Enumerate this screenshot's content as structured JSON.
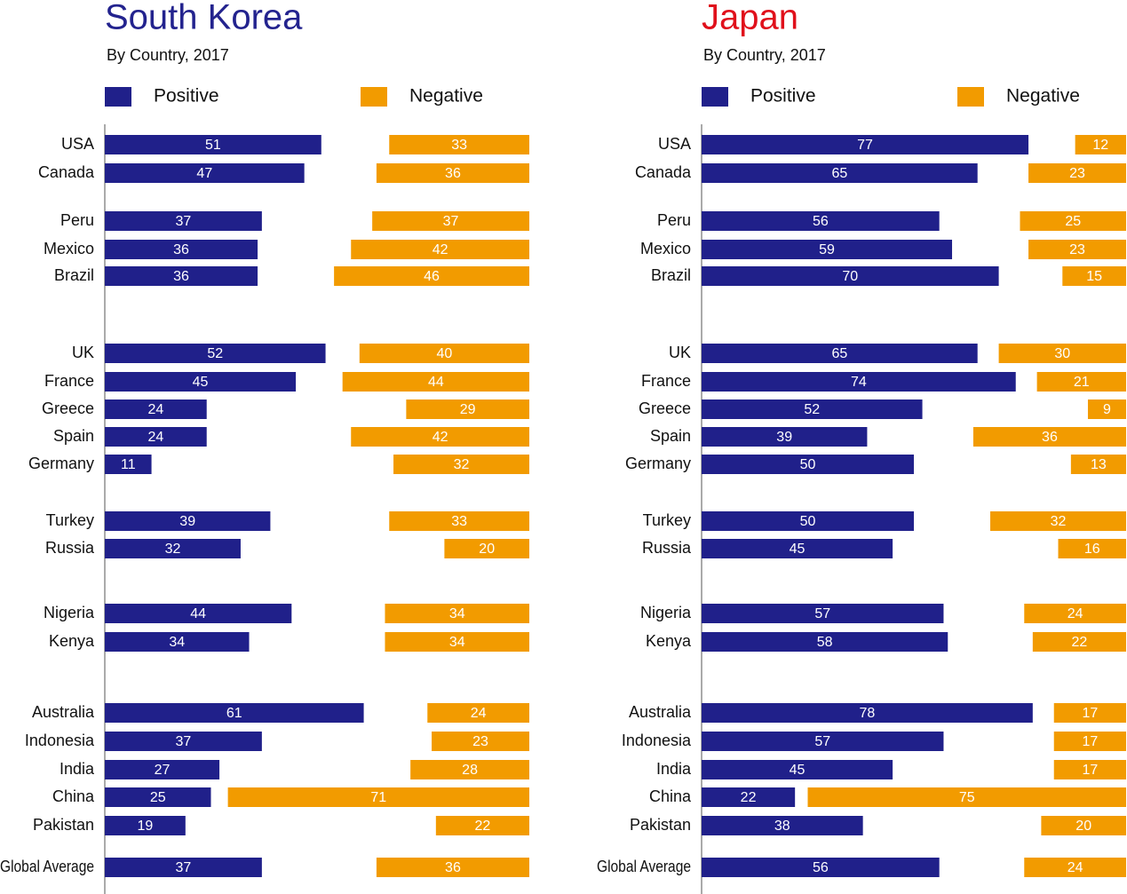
{
  "chart_data": [
    {
      "type": "diverging-bar",
      "title": "South Korea",
      "title_color": "#23238e",
      "subtitle": "By Country, 2017",
      "categories": [
        "USA",
        "Canada",
        "Peru",
        "Mexico",
        "Brazil",
        "UK",
        "France",
        "Greece",
        "Spain",
        "Germany",
        "Turkey",
        "Russia",
        "Nigeria",
        "Kenya",
        "Australia",
        "Indonesia",
        "India",
        "China",
        "Pakistan",
        "Global Average"
      ],
      "series": [
        {
          "name": "Positive",
          "color": "#20208a",
          "values": [
            51,
            47,
            37,
            36,
            36,
            52,
            45,
            24,
            24,
            11,
            39,
            32,
            44,
            34,
            61,
            37,
            27,
            25,
            19,
            37
          ]
        },
        {
          "name": "Negative",
          "color": "#f29b00",
          "values": [
            33,
            36,
            37,
            42,
            46,
            40,
            44,
            29,
            42,
            32,
            33,
            20,
            34,
            34,
            24,
            23,
            28,
            71,
            22,
            36
          ]
        }
      ]
    },
    {
      "type": "diverging-bar",
      "title": "Japan",
      "title_color": "#e0101b",
      "subtitle": "By Country, 2017",
      "categories": [
        "USA",
        "Canada",
        "Peru",
        "Mexico",
        "Brazil",
        "UK",
        "France",
        "Greece",
        "Spain",
        "Germany",
        "Turkey",
        "Russia",
        "Nigeria",
        "Kenya",
        "Australia",
        "Indonesia",
        "India",
        "China",
        "Pakistan",
        "Global Average"
      ],
      "series": [
        {
          "name": "Positive",
          "color": "#20208a",
          "values": [
            77,
            65,
            56,
            59,
            70,
            65,
            74,
            52,
            39,
            50,
            50,
            45,
            57,
            58,
            78,
            57,
            45,
            22,
            38,
            56
          ]
        },
        {
          "name": "Negative",
          "color": "#f29b00",
          "values": [
            12,
            23,
            25,
            23,
            15,
            30,
            21,
            9,
            36,
            13,
            32,
            16,
            24,
            22,
            17,
            17,
            17,
            75,
            20,
            24
          ]
        }
      ]
    }
  ]
}
